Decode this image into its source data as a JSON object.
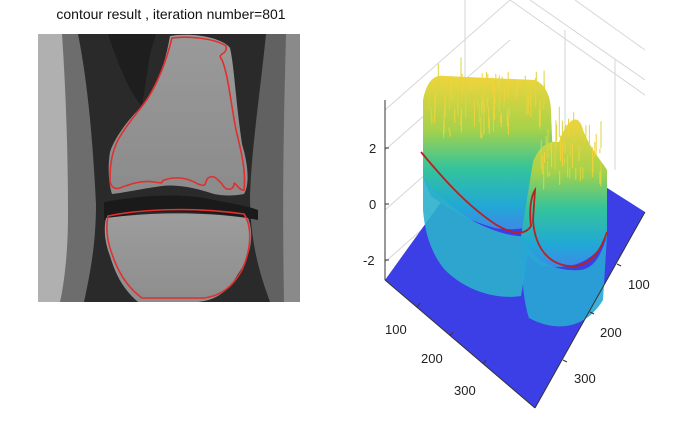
{
  "left_panel": {
    "title": "contour result , iteration number=801",
    "image": "knee MRI with segmented bone contours",
    "contour_color": "#e03030"
  },
  "chart_data": {
    "type": "surface",
    "z_ticks": [
      "2",
      "0",
      "-2"
    ],
    "x_ticks": [
      "100",
      "200",
      "300"
    ],
    "y_ticks": [
      "100",
      "200",
      "300"
    ],
    "zero_level_color": "#b82222",
    "base_color": "#3d3fe6",
    "colormap": [
      "#3d3fe6",
      "#21a8d6",
      "#35c49a",
      "#c5d83a",
      "#f0d43c"
    ],
    "grid": true
  }
}
